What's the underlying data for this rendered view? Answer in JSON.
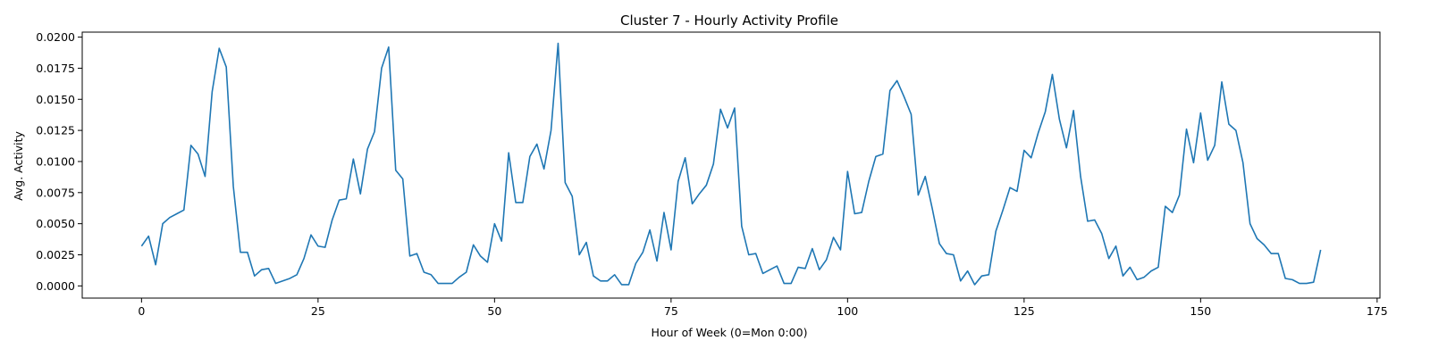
{
  "chart_data": {
    "type": "line",
    "title": "Cluster 7 - Hourly Activity Profile",
    "xlabel": "Hour of Week (0=Mon 0:00)",
    "ylabel": "Avg. Activity",
    "xlim": [
      -8.4,
      175.4
    ],
    "ylim": [
      -0.00098,
      0.0204
    ],
    "xticks": [
      0,
      25,
      50,
      75,
      100,
      125,
      150,
      175
    ],
    "xtick_labels": [
      "0",
      "25",
      "50",
      "75",
      "100",
      "125",
      "150",
      "175"
    ],
    "yticks": [
      0.0,
      0.0025,
      0.005,
      0.0075,
      0.01,
      0.0125,
      0.015,
      0.0175,
      0.02
    ],
    "ytick_labels": [
      "0.0000",
      "0.0025",
      "0.0050",
      "0.0075",
      "0.0100",
      "0.0125",
      "0.0150",
      "0.0175",
      "0.0200"
    ],
    "grid": false,
    "series": [
      {
        "color": "#1f77b4",
        "x_start": 0,
        "values": [
          0.0032,
          0.004,
          0.0017,
          0.005,
          0.0055,
          0.0058,
          0.0061,
          0.0113,
          0.0106,
          0.0088,
          0.0156,
          0.0191,
          0.0176,
          0.008,
          0.0027,
          0.0027,
          0.0008,
          0.0013,
          0.0014,
          0.0002,
          0.0004,
          0.0006,
          0.0009,
          0.0022,
          0.0041,
          0.0032,
          0.0031,
          0.0053,
          0.0069,
          0.007,
          0.0102,
          0.0074,
          0.011,
          0.0124,
          0.0175,
          0.0192,
          0.0093,
          0.0086,
          0.0024,
          0.0026,
          0.0011,
          0.0009,
          0.0002,
          0.0002,
          0.0002,
          0.0007,
          0.0011,
          0.0033,
          0.0024,
          0.0019,
          0.005,
          0.0036,
          0.0107,
          0.0067,
          0.0067,
          0.0104,
          0.0114,
          0.0094,
          0.0125,
          0.0195,
          0.0083,
          0.0072,
          0.0025,
          0.0035,
          0.0008,
          0.0004,
          0.0004,
          0.0009,
          0.0001,
          0.0001,
          0.0018,
          0.0027,
          0.0045,
          0.002,
          0.0059,
          0.0029,
          0.0084,
          0.0103,
          0.0066,
          0.0074,
          0.0081,
          0.0098,
          0.0142,
          0.0127,
          0.0143,
          0.0048,
          0.0025,
          0.0026,
          0.001,
          0.0013,
          0.0016,
          0.0002,
          0.0002,
          0.0015,
          0.0014,
          0.003,
          0.0013,
          0.0021,
          0.0039,
          0.0029,
          0.0092,
          0.0058,
          0.0059,
          0.0084,
          0.0104,
          0.0106,
          0.0157,
          0.0165,
          0.0152,
          0.0138,
          0.0073,
          0.0088,
          0.0062,
          0.0034,
          0.0026,
          0.0025,
          0.0004,
          0.0012,
          0.0001,
          0.0008,
          0.0009,
          0.0044,
          0.0061,
          0.0079,
          0.0076,
          0.0109,
          0.0103,
          0.0123,
          0.014,
          0.017,
          0.0134,
          0.0111,
          0.0141,
          0.0088,
          0.0052,
          0.0053,
          0.0042,
          0.0022,
          0.0032,
          0.0008,
          0.0015,
          0.0005,
          0.0007,
          0.0012,
          0.0015,
          0.0064,
          0.0059,
          0.0073,
          0.0126,
          0.0099,
          0.0139,
          0.0101,
          0.0113,
          0.0164,
          0.013,
          0.0125,
          0.0099,
          0.005,
          0.0038,
          0.0033,
          0.0026,
          0.0026,
          0.0006,
          0.0005,
          0.0002,
          0.0002,
          0.0003,
          0.0029
        ]
      }
    ]
  }
}
